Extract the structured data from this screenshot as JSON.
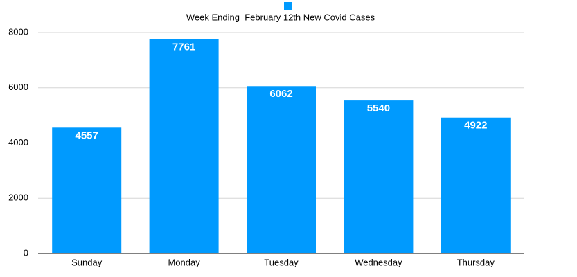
{
  "chart_data": {
    "type": "bar",
    "categories": [
      "Sunday",
      "Monday",
      "Tuesday",
      "Wednesday",
      "Thursday"
    ],
    "series": [
      {
        "name": "Week Ending  February 12th New Covid Cases",
        "color": "#009afe",
        "values": [
          4557,
          7761,
          6062,
          5540,
          4922
        ]
      }
    ],
    "ylim": [
      0,
      8000
    ],
    "yticks": [
      0,
      2000,
      4000,
      6000,
      8000
    ],
    "grid": true,
    "legend": "top"
  }
}
